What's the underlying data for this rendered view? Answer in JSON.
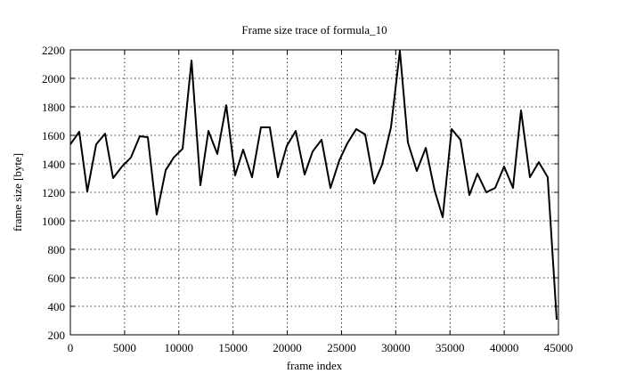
{
  "chart_data": {
    "type": "line",
    "title": "Frame size trace of formula_10",
    "x_label": "frame index",
    "y_label": "frame size [byte]",
    "x": [
      0,
      820,
      1560,
      2380,
      3200,
      3940,
      4760,
      5580,
      6400,
      7140,
      7960,
      8790,
      9530,
      10350,
      11170,
      11990,
      12730,
      13550,
      14370,
      15190,
      15930,
      16750,
      17570,
      18390,
      19130,
      19950,
      20780,
      21600,
      22340,
      23160,
      23980,
      24800,
      25540,
      26360,
      27180,
      28000,
      28740,
      29560,
      30380,
      31120,
      31940,
      32770,
      33590,
      34330,
      35150,
      35970,
      36790,
      37530,
      38350,
      39170,
      39990,
      40810,
      41550,
      42370,
      43190,
      44010,
      44840
    ],
    "series": [
      {
        "name": "frame size",
        "color": "#000000",
        "values": [
          1537,
          1625,
          1206,
          1537,
          1612,
          1300,
          1381,
          1444,
          1594,
          1587,
          1044,
          1356,
          1444,
          1506,
          2125,
          1250,
          1631,
          1469,
          1812,
          1319,
          1500,
          1306,
          1656,
          1656,
          1306,
          1525,
          1631,
          1325,
          1487,
          1569,
          1231,
          1425,
          1544,
          1644,
          1606,
          1262,
          1394,
          1656,
          2194,
          1550,
          1350,
          1512,
          1212,
          1025,
          1644,
          1569,
          1181,
          1331,
          1200,
          1231,
          1381,
          1231,
          1775,
          1306,
          1412,
          1306,
          306
        ]
      }
    ],
    "xlim": [
      0,
      45000
    ],
    "xticks": [
      0,
      5000,
      10000,
      15000,
      20000,
      25000,
      30000,
      35000,
      40000,
      45000
    ],
    "ylim": [
      200,
      2200
    ],
    "yticks": [
      200,
      400,
      600,
      800,
      1000,
      1200,
      1400,
      1600,
      1800,
      2000,
      2200
    ],
    "grid": true
  }
}
